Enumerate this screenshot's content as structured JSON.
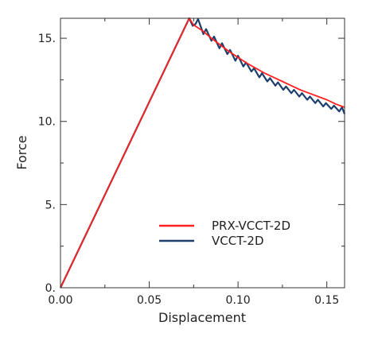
{
  "chart_data": {
    "type": "line",
    "title": "",
    "xlabel": "Displacement",
    "ylabel": "Force",
    "xlim": [
      0,
      0.16
    ],
    "ylim": [
      0,
      16.2
    ],
    "xticks": [
      {
        "value": 0,
        "label": "0.00"
      },
      {
        "value": 0.05,
        "label": "0.05"
      },
      {
        "value": 0.1,
        "label": "0.10"
      },
      {
        "value": 0.15,
        "label": "0.15"
      }
    ],
    "yticks": [
      {
        "value": 0,
        "label": "0."
      },
      {
        "value": 5,
        "label": "5."
      },
      {
        "value": 10,
        "label": "10."
      },
      {
        "value": 15,
        "label": "15."
      }
    ],
    "grid": false,
    "legend_position": "lower-right",
    "series": [
      {
        "name": "PRX-VCCT-2D",
        "color": "#ff2020",
        "x": [
          0,
          0.0725,
          0.075,
          0.08,
          0.085,
          0.09,
          0.095,
          0.1,
          0.105,
          0.11,
          0.115,
          0.12,
          0.125,
          0.13,
          0.135,
          0.14,
          0.145,
          0.15,
          0.155,
          0.16
        ],
        "y": [
          0,
          16.2,
          15.8,
          15.45,
          15.0,
          14.6,
          14.2,
          13.85,
          13.5,
          13.2,
          12.9,
          12.65,
          12.4,
          12.15,
          11.9,
          11.7,
          11.5,
          11.3,
          11.05,
          10.85
        ]
      },
      {
        "name": "VCCT-2D",
        "color": "#1c3f6e",
        "x": [
          0,
          0.0725,
          0.0745,
          0.076,
          0.0775,
          0.0805,
          0.082,
          0.085,
          0.0865,
          0.0895,
          0.091,
          0.094,
          0.0955,
          0.0985,
          0.1,
          0.103,
          0.1045,
          0.1075,
          0.109,
          0.112,
          0.1135,
          0.1165,
          0.118,
          0.121,
          0.1225,
          0.1255,
          0.127,
          0.13,
          0.1315,
          0.1345,
          0.136,
          0.139,
          0.1405,
          0.1435,
          0.145,
          0.148,
          0.1495,
          0.1525,
          0.154,
          0.157,
          0.1585,
          0.16
        ],
        "y": [
          0,
          16.2,
          15.75,
          15.85,
          16.15,
          15.25,
          15.55,
          14.85,
          15.1,
          14.4,
          14.7,
          14.05,
          14.3,
          13.65,
          13.95,
          13.3,
          13.55,
          13.0,
          13.2,
          12.65,
          12.9,
          12.4,
          12.6,
          12.15,
          12.35,
          11.9,
          12.1,
          11.7,
          11.9,
          11.5,
          11.7,
          11.3,
          11.5,
          11.1,
          11.3,
          10.9,
          11.1,
          10.75,
          10.95,
          10.6,
          10.85,
          10.45
        ]
      }
    ]
  }
}
